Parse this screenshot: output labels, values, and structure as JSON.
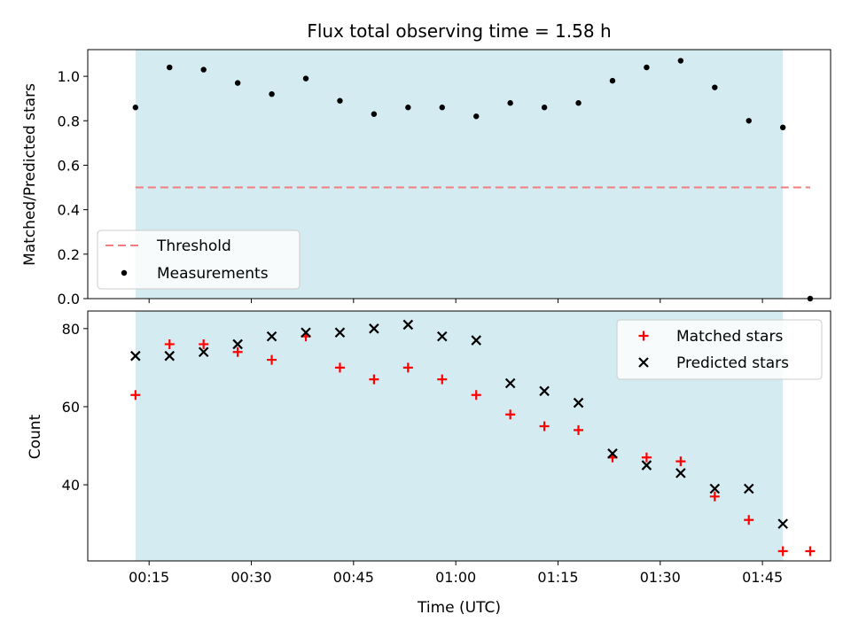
{
  "chart_data": [
    {
      "type": "scatter",
      "title": "Flux total observing time = 1.58 h",
      "xlabel": "",
      "ylabel": "Matched/Predicted stars",
      "ylim": [
        0,
        1.12
      ],
      "xlim": [
        "00:06",
        "01:55"
      ],
      "yticks": [
        "0.0",
        "0.2",
        "0.4",
        "0.6",
        "0.8",
        "1.0"
      ],
      "legend_position": "lower-left",
      "shaded_interval": {
        "start": "00:13",
        "end": "01:48",
        "color": "#d4ebf1"
      },
      "threshold": {
        "name": "Threshold",
        "value": 0.5,
        "x": [
          "00:13",
          "01:52"
        ],
        "color": "#f47c7c",
        "style": "dashed"
      },
      "series": [
        {
          "name": "Measurements",
          "marker": "dot",
          "color": "#000000",
          "x": [
            "00:13",
            "00:18",
            "00:23",
            "00:28",
            "00:33",
            "00:38",
            "00:43",
            "00:48",
            "00:53",
            "00:58",
            "01:03",
            "01:08",
            "01:13",
            "01:18",
            "01:23",
            "01:28",
            "01:33",
            "01:38",
            "01:43",
            "01:48",
            "01:52"
          ],
          "values": [
            0.86,
            1.04,
            1.03,
            0.97,
            0.92,
            0.99,
            0.89,
            0.83,
            0.86,
            0.86,
            0.82,
            0.88,
            0.86,
            0.88,
            0.98,
            1.04,
            1.07,
            0.95,
            0.8,
            0.77,
            0.0
          ]
        }
      ]
    },
    {
      "type": "scatter",
      "title": "",
      "xlabel": "Time (UTC)",
      "ylabel": "Count",
      "ylim": [
        20.5,
        84.5
      ],
      "xlim": [
        "00:06",
        "01:55"
      ],
      "xticks": [
        "00:15",
        "00:30",
        "00:45",
        "01:00",
        "01:15",
        "01:30",
        "01:45"
      ],
      "yticks": [
        "40",
        "60",
        "80"
      ],
      "legend_position": "upper-right",
      "shaded_interval": {
        "start": "00:13",
        "end": "01:48",
        "color": "#d4ebf1"
      },
      "series": [
        {
          "name": "Matched stars",
          "marker": "plus",
          "color": "#ff0000",
          "x": [
            "00:13",
            "00:18",
            "00:23",
            "00:28",
            "00:33",
            "00:38",
            "00:43",
            "00:48",
            "00:53",
            "00:58",
            "01:03",
            "01:08",
            "01:13",
            "01:18",
            "01:23",
            "01:28",
            "01:33",
            "01:38",
            "01:43",
            "01:48",
            "01:52"
          ],
          "values": [
            63,
            76,
            76,
            74,
            72,
            78,
            70,
            67,
            70,
            67,
            63,
            58,
            55,
            54,
            47,
            47,
            46,
            37,
            31,
            23,
            23
          ]
        },
        {
          "name": "Predicted stars",
          "marker": "x",
          "color": "#000000",
          "x": [
            "00:13",
            "00:18",
            "00:23",
            "00:28",
            "00:33",
            "00:38",
            "00:43",
            "00:48",
            "00:53",
            "00:58",
            "01:03",
            "01:08",
            "01:13",
            "01:18",
            "01:23",
            "01:28",
            "01:33",
            "01:38",
            "01:43",
            "01:48"
          ],
          "values": [
            73,
            73,
            74,
            76,
            78,
            79,
            79,
            80,
            81,
            78,
            77,
            66,
            64,
            61,
            48,
            45,
            43,
            39,
            39,
            30
          ]
        }
      ]
    }
  ]
}
